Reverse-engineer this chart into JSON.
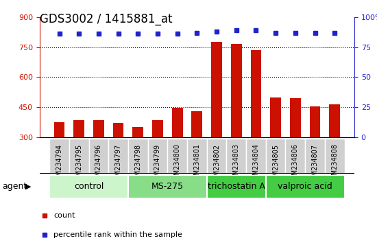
{
  "title": "GDS3002 / 1415881_at",
  "samples": [
    "GSM234794",
    "GSM234795",
    "GSM234796",
    "GSM234797",
    "GSM234798",
    "GSM234799",
    "GSM234800",
    "GSM234801",
    "GSM234802",
    "GSM234803",
    "GSM234804",
    "GSM234805",
    "GSM234806",
    "GSM234807",
    "GSM234808"
  ],
  "counts": [
    375,
    385,
    387,
    372,
    352,
    385,
    448,
    430,
    775,
    765,
    735,
    500,
    495,
    455,
    465
  ],
  "percentiles": [
    86,
    86,
    86,
    86,
    86,
    86,
    86,
    87,
    88,
    89,
    89,
    87,
    87,
    87,
    87
  ],
  "ylim_left": [
    300,
    900
  ],
  "ylim_right": [
    0,
    100
  ],
  "yticks_left": [
    300,
    450,
    600,
    750,
    900
  ],
  "yticks_right": [
    0,
    25,
    50,
    75,
    100
  ],
  "ytick_labels_right": [
    "0",
    "25",
    "50",
    "75",
    "100%"
  ],
  "grid_lines": [
    450,
    600,
    750
  ],
  "bar_color": "#cc1100",
  "dot_color": "#2222cc",
  "groups": [
    {
      "label": "control",
      "start": 0,
      "end": 3,
      "color": "#ccf5cc"
    },
    {
      "label": "MS-275",
      "start": 4,
      "end": 7,
      "color": "#88dd88"
    },
    {
      "label": "trichostatin A",
      "start": 8,
      "end": 10,
      "color": "#44cc44"
    },
    {
      "label": "valproic acid",
      "start": 11,
      "end": 14,
      "color": "#44cc44"
    }
  ],
  "title_fontsize": 12,
  "tick_fontsize": 8,
  "xtick_fontsize": 7,
  "group_fontsize": 9,
  "legend_fontsize": 8
}
